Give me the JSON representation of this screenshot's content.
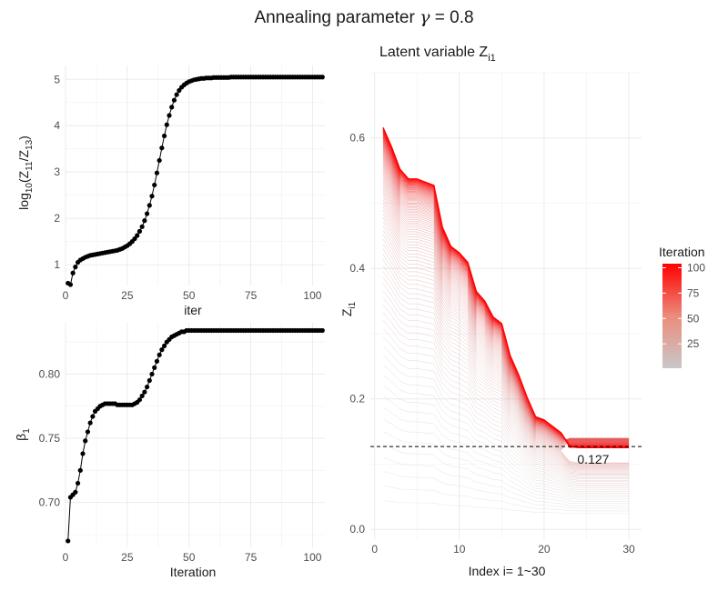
{
  "title_text": "Annealing parameter ",
  "title_symbol": "γ",
  "title_value": " = 0.8",
  "chart_data": [
    {
      "panel": "top-left",
      "type": "line",
      "ylabel_base": "log",
      "ylabel_sub": "10",
      "ylabel_num": "(Z",
      "ylabel_num_sub": "11",
      "ylabel_den": "/Z",
      "ylabel_den_sub": "13",
      "ylabel_close": ")",
      "xlabel": "iter",
      "xlim": [
        0,
        105
      ],
      "ylim": [
        0.55,
        5.3
      ],
      "x_ticks": [
        0,
        25,
        50,
        75,
        100
      ],
      "y_ticks": [
        1,
        2,
        3,
        4,
        5
      ],
      "x_tick_labels": [
        "0",
        "25",
        "50",
        "75",
        "100"
      ],
      "y_tick_labels": [
        "1",
        "2",
        "3",
        "4",
        "5"
      ],
      "points_x": [
        1,
        2,
        3,
        4,
        5,
        6,
        7,
        8,
        9,
        10,
        11,
        12,
        13,
        14,
        15,
        16,
        17,
        18,
        19,
        20,
        21,
        22,
        23,
        24,
        25,
        26,
        27,
        28,
        29,
        30,
        31,
        32,
        33,
        34,
        35,
        36,
        37,
        38,
        39,
        40,
        41,
        42,
        43,
        44,
        45,
        46,
        47,
        48,
        49,
        50,
        51,
        52,
        53,
        54,
        55,
        56,
        57,
        58,
        59,
        60,
        61,
        62,
        63,
        64,
        65,
        66,
        67,
        68,
        69,
        70,
        71,
        72,
        73,
        74,
        75,
        76,
        77,
        78,
        79,
        80,
        81,
        82,
        83,
        84,
        85,
        86,
        87,
        88,
        89,
        90,
        91,
        92,
        93,
        94,
        95,
        96,
        97,
        98,
        99,
        100,
        101,
        102,
        103,
        104
      ],
      "points_y": [
        0.6,
        0.57,
        0.82,
        0.95,
        1.05,
        1.1,
        1.13,
        1.16,
        1.18,
        1.2,
        1.21,
        1.22,
        1.23,
        1.24,
        1.25,
        1.26,
        1.27,
        1.28,
        1.29,
        1.3,
        1.31,
        1.33,
        1.35,
        1.38,
        1.41,
        1.45,
        1.5,
        1.56,
        1.63,
        1.72,
        1.82,
        1.95,
        2.1,
        2.28,
        2.48,
        2.72,
        2.98,
        3.25,
        3.52,
        3.78,
        4.02,
        4.22,
        4.4,
        4.55,
        4.67,
        4.76,
        4.83,
        4.88,
        4.92,
        4.95,
        4.97,
        4.99,
        5.0,
        5.01,
        5.02,
        5.02,
        5.03,
        5.03,
        5.03,
        5.04,
        5.04,
        5.04,
        5.04,
        5.04,
        5.04,
        5.04,
        5.05,
        5.05,
        5.05,
        5.05,
        5.05,
        5.05,
        5.05,
        5.05,
        5.05,
        5.05,
        5.05,
        5.05,
        5.05,
        5.05,
        5.05,
        5.05,
        5.05,
        5.05,
        5.05,
        5.05,
        5.05,
        5.05,
        5.05,
        5.05,
        5.05,
        5.05,
        5.05,
        5.05,
        5.05,
        5.05,
        5.05,
        5.05,
        5.05,
        5.05,
        5.05,
        5.05,
        5.05,
        5.05
      ]
    },
    {
      "panel": "bottom-left",
      "type": "line",
      "ylabel_base": "β",
      "ylabel_sub": "1",
      "xlabel": "Iteration",
      "xlim": [
        0,
        105
      ],
      "ylim": [
        0.665,
        0.84
      ],
      "x_ticks": [
        0,
        25,
        50,
        75,
        100
      ],
      "y_ticks": [
        0.7,
        0.75,
        0.8
      ],
      "x_tick_labels": [
        "0",
        "25",
        "50",
        "75",
        "100"
      ],
      "y_tick_labels": [
        "0.70",
        "0.75",
        "0.80"
      ],
      "points_x": [
        1,
        2,
        3,
        4,
        5,
        6,
        7,
        8,
        9,
        10,
        11,
        12,
        13,
        14,
        15,
        16,
        17,
        18,
        19,
        20,
        21,
        22,
        23,
        24,
        25,
        26,
        27,
        28,
        29,
        30,
        31,
        32,
        33,
        34,
        35,
        36,
        37,
        38,
        39,
        40,
        41,
        42,
        43,
        44,
        45,
        46,
        47,
        48,
        49,
        50,
        51,
        52,
        53,
        54,
        55,
        56,
        57,
        58,
        59,
        60,
        61,
        62,
        63,
        64,
        65,
        66,
        67,
        68,
        69,
        70,
        71,
        72,
        73,
        74,
        75,
        76,
        77,
        78,
        79,
        80,
        81,
        82,
        83,
        84,
        85,
        86,
        87,
        88,
        89,
        90,
        91,
        92,
        93,
        94,
        95,
        96,
        97,
        98,
        99,
        100,
        101,
        102,
        103,
        104
      ],
      "points_y": [
        0.67,
        0.704,
        0.706,
        0.708,
        0.715,
        0.725,
        0.738,
        0.748,
        0.755,
        0.762,
        0.767,
        0.771,
        0.773,
        0.775,
        0.776,
        0.777,
        0.777,
        0.777,
        0.777,
        0.777,
        0.776,
        0.776,
        0.776,
        0.776,
        0.776,
        0.776,
        0.776,
        0.777,
        0.778,
        0.78,
        0.783,
        0.786,
        0.79,
        0.795,
        0.8,
        0.805,
        0.81,
        0.815,
        0.819,
        0.822,
        0.825,
        0.827,
        0.829,
        0.83,
        0.831,
        0.832,
        0.833,
        0.833,
        0.834,
        0.834,
        0.834,
        0.834,
        0.834,
        0.834,
        0.834,
        0.834,
        0.834,
        0.834,
        0.834,
        0.834,
        0.834,
        0.834,
        0.834,
        0.834,
        0.834,
        0.834,
        0.834,
        0.834,
        0.834,
        0.834,
        0.834,
        0.834,
        0.834,
        0.834,
        0.834,
        0.834,
        0.834,
        0.834,
        0.834,
        0.834,
        0.834,
        0.834,
        0.834,
        0.834,
        0.834,
        0.834,
        0.834,
        0.834,
        0.834,
        0.834,
        0.834,
        0.834,
        0.834,
        0.834,
        0.834,
        0.834,
        0.834,
        0.834,
        0.834,
        0.834,
        0.834,
        0.834,
        0.834,
        0.834
      ]
    },
    {
      "panel": "right",
      "type": "line",
      "title_base": "Latent variable Z",
      "title_sub": "i1",
      "ylabel_base": "Z",
      "ylabel_sub": "i1",
      "xlabel": "Index i= 1~30",
      "xlim": [
        -0.5,
        31.5
      ],
      "ylim": [
        -0.015,
        0.7
      ],
      "x_ticks": [
        0,
        10,
        20,
        30
      ],
      "y_ticks": [
        0.0,
        0.2,
        0.4,
        0.6
      ],
      "x_tick_labels": [
        "0",
        "10",
        "20",
        "30"
      ],
      "y_tick_labels": [
        "0.0",
        "0.2",
        "0.4",
        "0.6"
      ],
      "reference_line": {
        "y": 0.127,
        "label": "0.127",
        "style": "dashed"
      },
      "legend": {
        "title": "Iteration",
        "position": "right",
        "ticks": [
          25,
          50,
          75,
          100
        ],
        "tick_labels": [
          "25",
          "50",
          "75",
          "100"
        ],
        "range": [
          1,
          104
        ],
        "low_color": "#c8c8c8",
        "high_color": "#ff0000"
      },
      "index": [
        1,
        2,
        3,
        4,
        5,
        6,
        7,
        8,
        9,
        10,
        11,
        12,
        13,
        14,
        15,
        16,
        17,
        18,
        19,
        20,
        21,
        22,
        23,
        24,
        25,
        26,
        27,
        28,
        29,
        30
      ],
      "final_curve_iteration_104": [
        0.625,
        0.595,
        0.56,
        0.545,
        0.545,
        0.54,
        0.535,
        0.47,
        0.44,
        0.43,
        0.415,
        0.37,
        0.355,
        0.33,
        0.32,
        0.27,
        0.24,
        0.205,
        0.175,
        0.17,
        0.16,
        0.15,
        0.13,
        0.127,
        0.127,
        0.127,
        0.127,
        0.127,
        0.127,
        0.127
      ]
    }
  ]
}
